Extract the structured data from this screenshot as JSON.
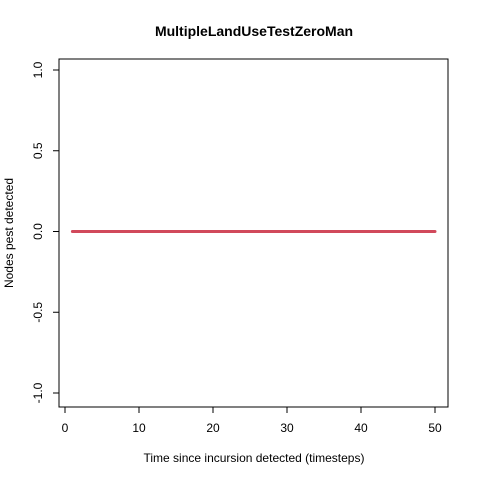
{
  "chart_data": {
    "type": "line",
    "title": "MultipleLandUseTestZeroMan",
    "xlabel": "Time since incursion detected (timesteps)",
    "ylabel": "Nodes pest detected",
    "xlim": [
      1,
      50
    ],
    "ylim": [
      -1,
      1
    ],
    "x_ticks": [
      "0",
      "10",
      "20",
      "30",
      "40",
      "50"
    ],
    "y_ticks": [
      "-1.0",
      "-0.5",
      "0.0",
      "0.5",
      "1.0"
    ],
    "grid": false,
    "series": [
      {
        "color": "#d1495b",
        "x": [
          1,
          50
        ],
        "y": [
          0,
          0
        ]
      }
    ]
  }
}
